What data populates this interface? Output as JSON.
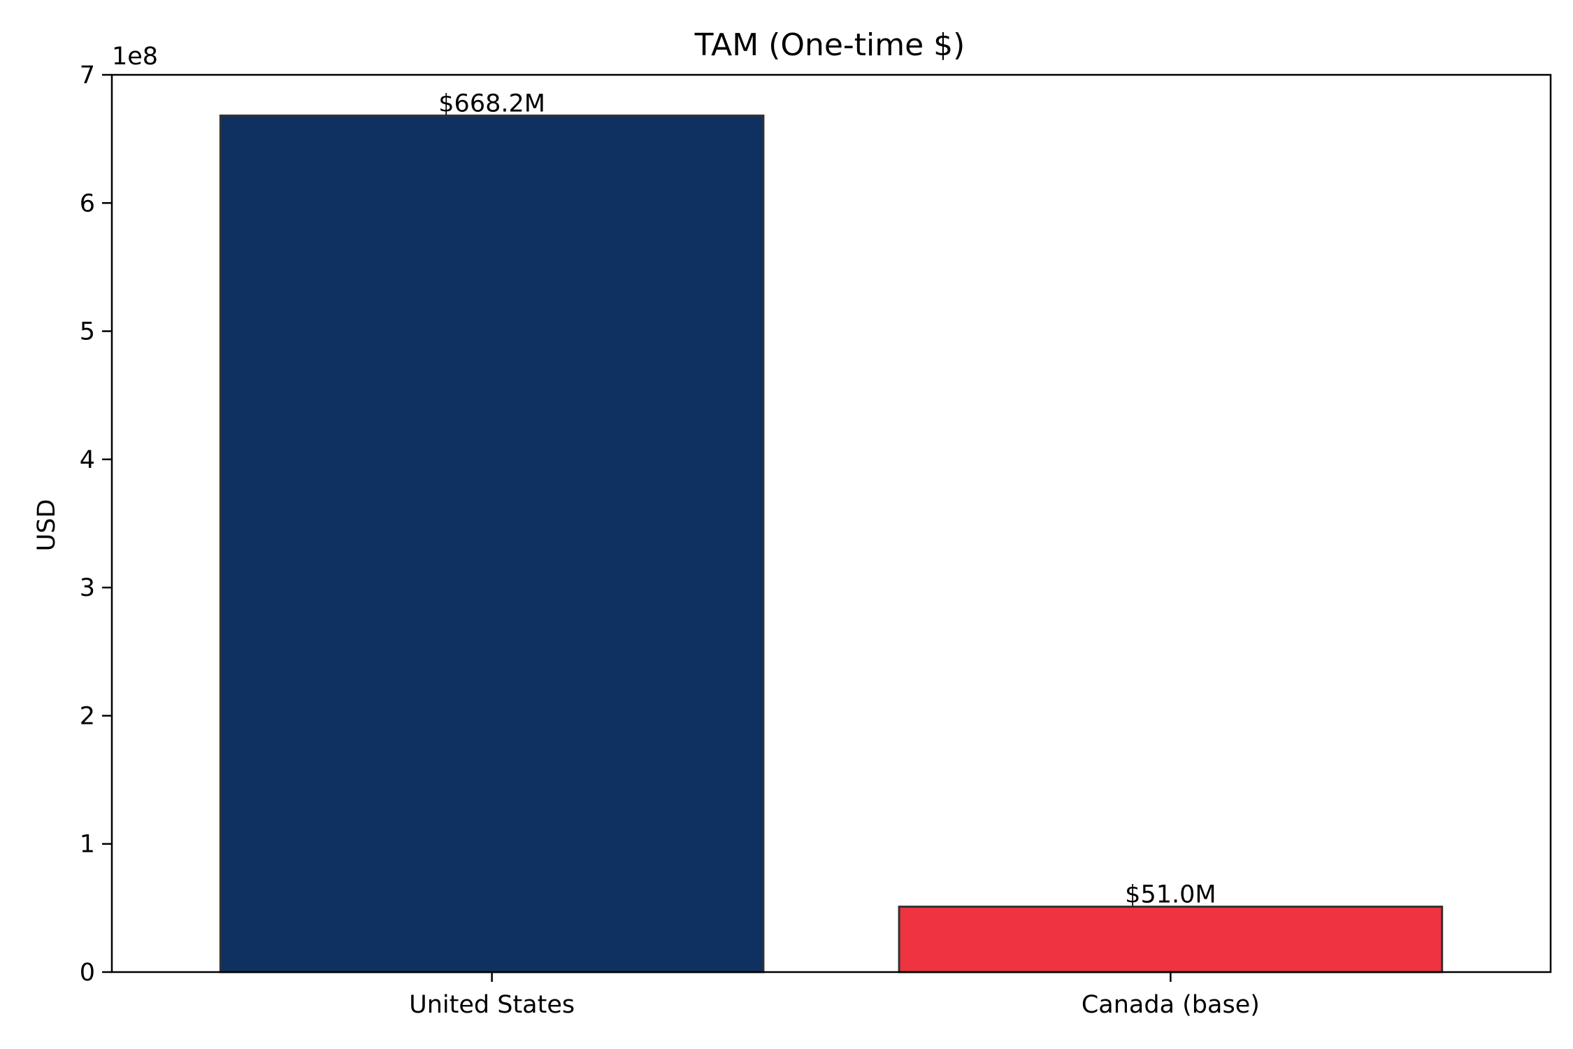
{
  "chart_data": {
    "type": "bar",
    "title": "TAM (One-time $)",
    "xlabel": "",
    "ylabel": "USD",
    "y_offset_text": "1e8",
    "ylim": [
      0,
      7
    ],
    "y_ticks": [
      0,
      1,
      2,
      3,
      4,
      5,
      6,
      7
    ],
    "y_tick_labels": [
      "0",
      "1",
      "2",
      "3",
      "4",
      "5",
      "6",
      "7"
    ],
    "y_scale_note": "values in units of 1e8 USD",
    "categories": [
      "United States",
      "Canada (base)"
    ],
    "values": [
      6.682,
      0.51
    ],
    "data_labels": [
      "$668.2M",
      "$51.0M"
    ],
    "colors": [
      "#0e3162",
      "#ef3340"
    ],
    "edge_color": "#333333",
    "grid": false,
    "legend": "none"
  }
}
